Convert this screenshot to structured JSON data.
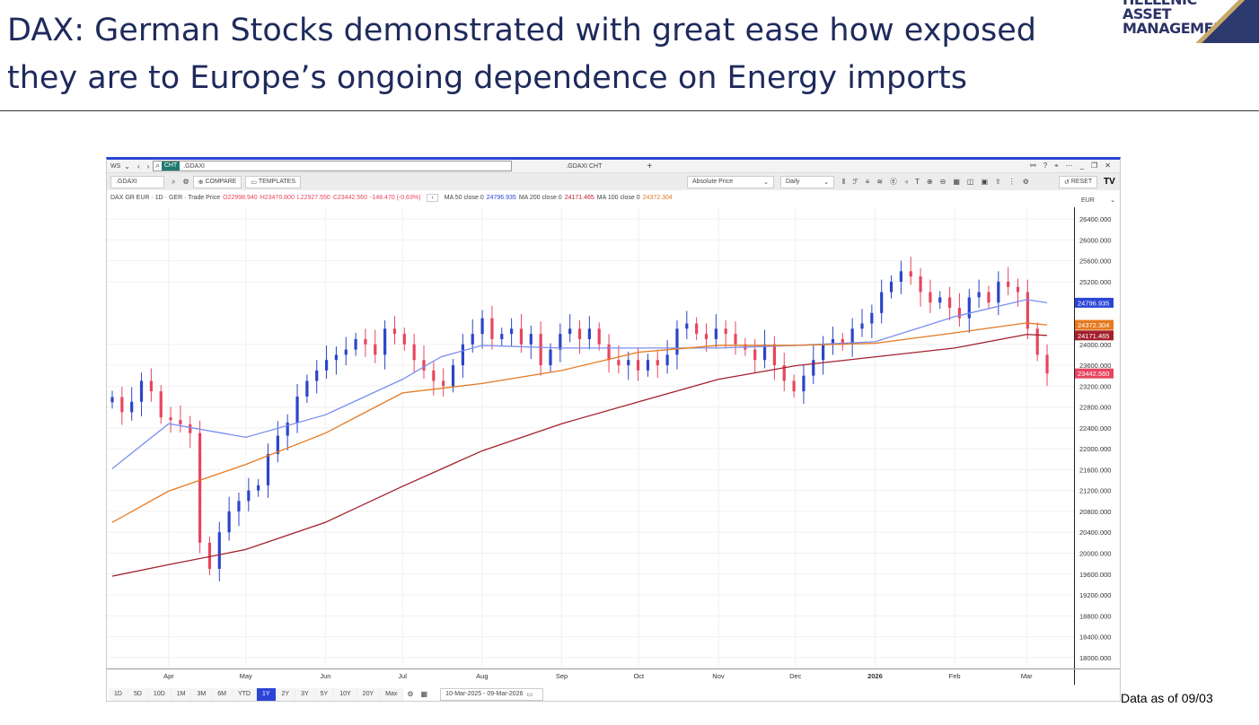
{
  "slide": {
    "title_line1": "DAX: German Stocks demonstrated with great ease how exposed",
    "title_line2": "they are to Europe’s ongoing dependence on Energy imports",
    "logo": [
      "HELLENIC",
      "ASSET",
      "MANAGEMENT"
    ],
    "footnote": "Data as of 09/03"
  },
  "window": {
    "workspace": "WS",
    "tab_badge": "CHT",
    "search_value": ".GDAXI",
    "tab2": ".GDAXI CHT",
    "plus": "+"
  },
  "toolbar": {
    "ric": ".GDAXI",
    "compare": "COMPARE",
    "templates": "TEMPLATES",
    "price_type": "Absolute Price",
    "interval": "Daily",
    "reset": "RESET",
    "currency": "EUR"
  },
  "legend": {
    "instrument": "DAX GR EUR · 1D · GER · Trade Price",
    "open": "O22998.940",
    "high": "H23470.800",
    "low": "L22927.550",
    "close": "C23442.560",
    "change": "-148.470 (-0.63%)",
    "ma50_label": "MA 50 close 0",
    "ma50_value": "24796.935",
    "ma200_label": "MA 200 close 0",
    "ma200_value": "24171.465",
    "ma100_label": "MA 100 close 0",
    "ma100_value": "24372.304"
  },
  "ranges": [
    "1D",
    "5D",
    "10D",
    "1M",
    "3M",
    "6M",
    "YTD",
    "1Y",
    "2Y",
    "3Y",
    "5Y",
    "10Y",
    "20Y",
    "Max"
  ],
  "active_range": "1Y",
  "date_range": "10-Mar-2025 - 09-Mar-2026",
  "colors": {
    "up": "#2b45c8",
    "down": "#e8455e",
    "ma50": "#7b8df0",
    "ma100": "#e6781e",
    "ma200": "#a3202c",
    "accent": "#2b45d6"
  },
  "chart_data": {
    "type": "candlestick",
    "start_date": "10-Mar-2025",
    "end_date": "09-Mar-2026",
    "ylim": [
      17800,
      26600
    ],
    "yticks": [
      26400,
      26000,
      25600,
      25200,
      24000,
      23600,
      23200,
      22800,
      22400,
      22000,
      21600,
      21200,
      20800,
      20400,
      20000,
      19600,
      19200,
      18800,
      18400,
      18000
    ],
    "xticks": [
      {
        "label": "Apr",
        "day": 22
      },
      {
        "label": "May",
        "day": 52
      },
      {
        "label": "Jun",
        "day": 83
      },
      {
        "label": "Jul",
        "day": 113
      },
      {
        "label": "Aug",
        "day": 144
      },
      {
        "label": "Sep",
        "day": 175
      },
      {
        "label": "Oct",
        "day": 205
      },
      {
        "label": "Nov",
        "day": 236
      },
      {
        "label": "Dec",
        "day": 266
      },
      {
        "label": "2026",
        "day": 297
      },
      {
        "label": "Feb",
        "day": 328
      },
      {
        "label": "Mar",
        "day": 356
      }
    ],
    "closes": [
      22990,
      22700,
      22900,
      23300,
      23100,
      22600,
      22550,
      22470,
      22300,
      20200,
      19700,
      20400,
      20800,
      21000,
      21200,
      21300,
      21900,
      22250,
      22500,
      23000,
      23300,
      23500,
      23700,
      23800,
      23900,
      24100,
      24000,
      23800,
      24300,
      24200,
      24000,
      23700,
      23500,
      23300,
      23200,
      23600,
      24000,
      24200,
      24500,
      24100,
      24200,
      24300,
      24000,
      24200,
      23600,
      23900,
      24200,
      24300,
      24100,
      24300,
      24000,
      23700,
      23600,
      23700,
      23500,
      23700,
      23600,
      23800,
      24300,
      24400,
      24200,
      24100,
      24300,
      24200,
      24000,
      23900,
      23700,
      24000,
      23600,
      23300,
      23100,
      23400,
      23700,
      24000,
      24100,
      24000,
      24300,
      24400,
      24600,
      25000,
      25200,
      25400,
      25300,
      25000,
      24800,
      24900,
      24700,
      24500,
      24900,
      25000,
      24800,
      25200,
      25100,
      25000,
      24300,
      23800,
      23442.56
    ],
    "series": [
      {
        "name": "MA 50 close 0",
        "color": "#7b8df0",
        "points": [
          [
            0,
            21620
          ],
          [
            22,
            22480
          ],
          [
            52,
            22220
          ],
          [
            83,
            22650
          ],
          [
            113,
            23330
          ],
          [
            128,
            23760
          ],
          [
            144,
            23980
          ],
          [
            175,
            23930
          ],
          [
            205,
            23930
          ],
          [
            236,
            23930
          ],
          [
            266,
            23980
          ],
          [
            297,
            24050
          ],
          [
            328,
            24530
          ],
          [
            356,
            24857
          ],
          [
            364,
            24796.935
          ]
        ]
      },
      {
        "name": "MA 100 close 0",
        "color": "#e6781e",
        "points": [
          [
            0,
            20590
          ],
          [
            22,
            21190
          ],
          [
            52,
            21700
          ],
          [
            83,
            22300
          ],
          [
            113,
            23070
          ],
          [
            144,
            23250
          ],
          [
            175,
            23500
          ],
          [
            205,
            23850
          ],
          [
            236,
            23980
          ],
          [
            266,
            23980
          ],
          [
            297,
            24020
          ],
          [
            328,
            24220
          ],
          [
            356,
            24410
          ],
          [
            364,
            24372.304
          ]
        ]
      },
      {
        "name": "MA 200 close 0",
        "color": "#a3202c",
        "points": [
          [
            0,
            19560
          ],
          [
            22,
            19780
          ],
          [
            52,
            20070
          ],
          [
            83,
            20590
          ],
          [
            113,
            21280
          ],
          [
            144,
            21960
          ],
          [
            175,
            22480
          ],
          [
            205,
            22900
          ],
          [
            236,
            23330
          ],
          [
            266,
            23590
          ],
          [
            297,
            23760
          ],
          [
            328,
            23930
          ],
          [
            356,
            24190
          ],
          [
            364,
            24171.465
          ]
        ]
      }
    ],
    "last_labels": [
      {
        "value": "24796.935",
        "color": "#2b45d6"
      },
      {
        "value": "24372.304",
        "color": "#e6781e"
      },
      {
        "value": "24171.465",
        "color": "#a3202c"
      },
      {
        "value": "23442.560",
        "color": "#e8455e"
      }
    ]
  }
}
